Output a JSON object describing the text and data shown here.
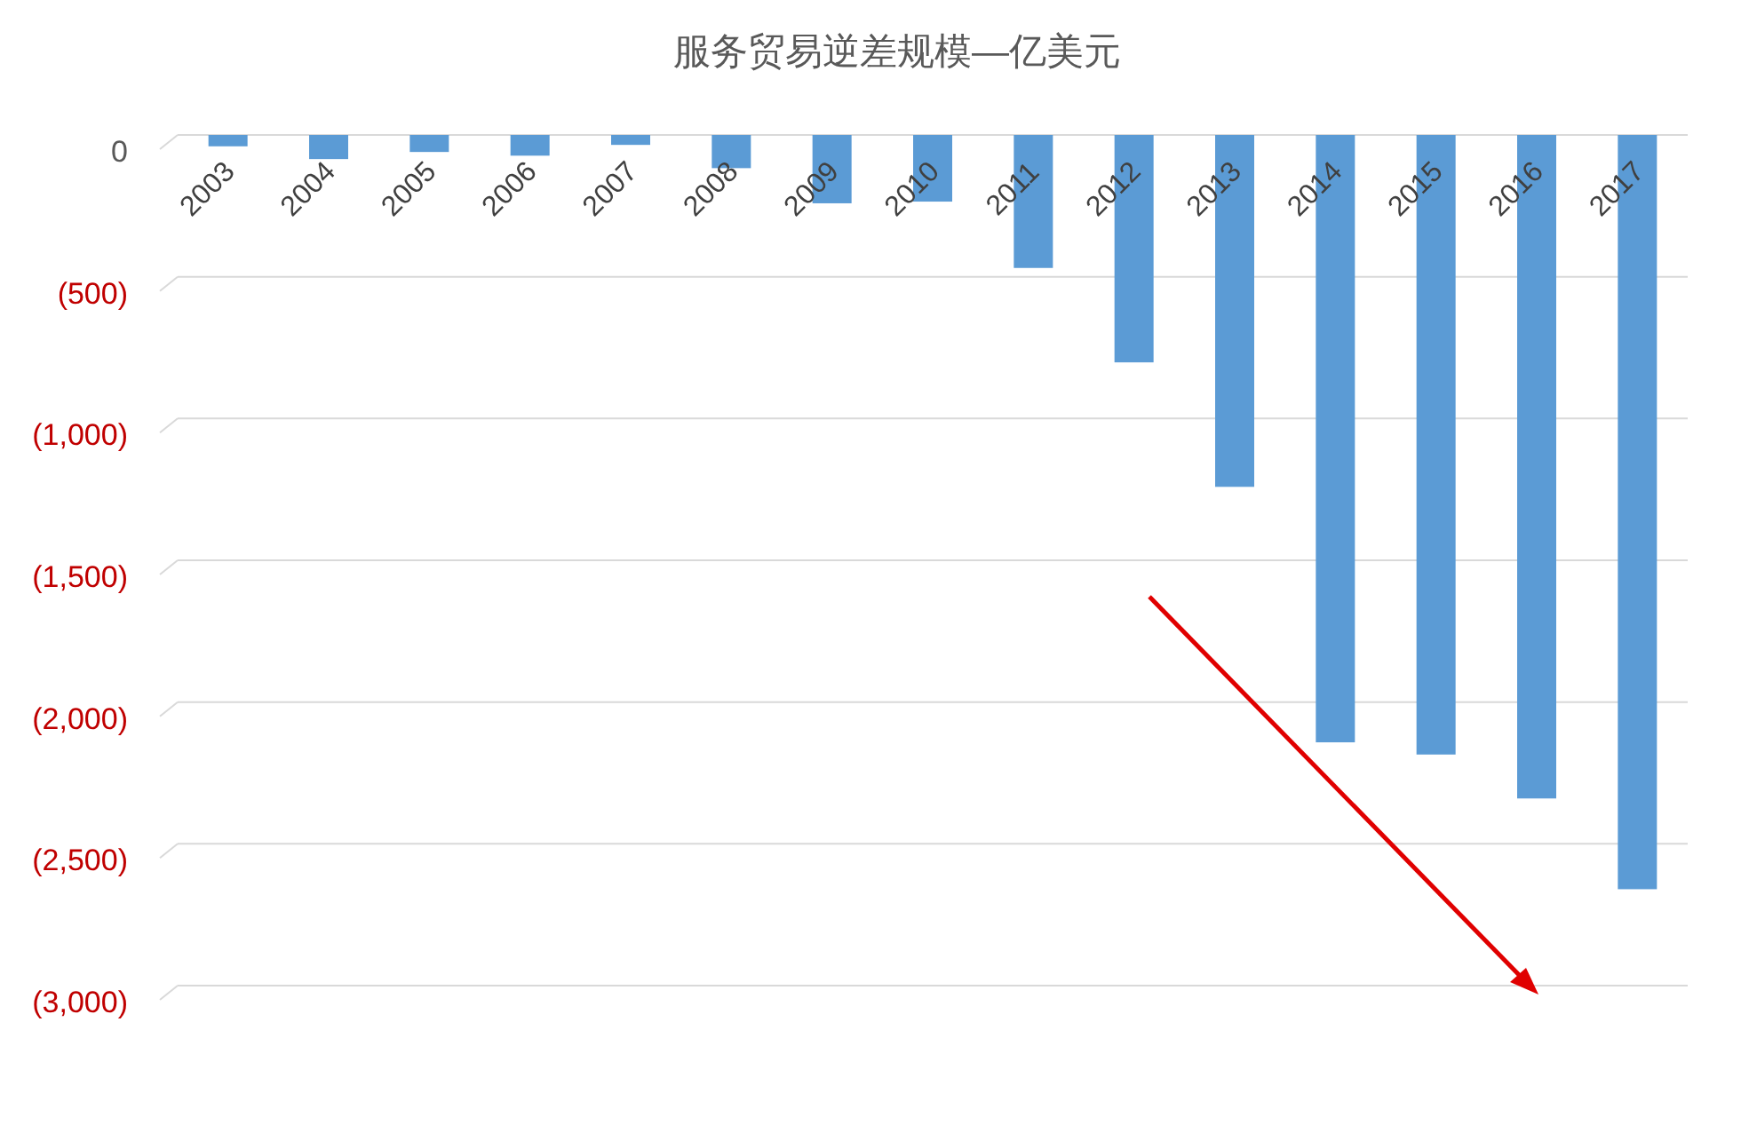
{
  "chart_data": {
    "type": "bar",
    "title": "服务贸易逆差规模—亿美元",
    "categories": [
      "2003",
      "2004",
      "2005",
      "2006",
      "2007",
      "2008",
      "2009",
      "2010",
      "2011",
      "2012",
      "2013",
      "2014",
      "2015",
      "2016",
      "2017"
    ],
    "values": [
      -40,
      -85,
      -60,
      -73,
      -35,
      -117,
      -241,
      -235,
      -469,
      -802,
      -1241,
      -2142,
      -2185,
      -2340,
      -2660
    ],
    "color": "#5b9bd5",
    "ylim": [
      -3000,
      0
    ],
    "yticks": [
      0,
      {
        "value": -500,
        "label": "(500)"
      },
      {
        "value": -1000,
        "label": "(1,000)"
      },
      {
        "value": -1500,
        "label": "(1,500)"
      },
      {
        "value": -2000,
        "label": "(2,000)"
      },
      {
        "value": -2500,
        "label": "(2,500)"
      },
      {
        "value": -3000,
        "label": "(3,000)"
      }
    ],
    "grid": "y"
  }
}
